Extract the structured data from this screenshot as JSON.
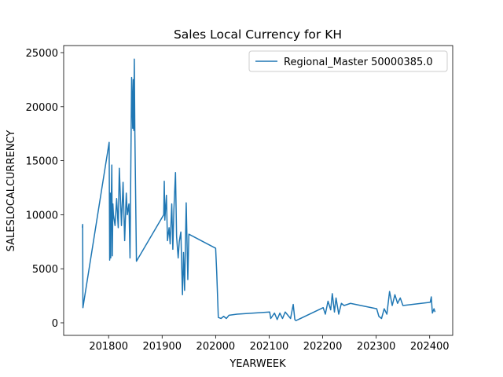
{
  "chart_data": {
    "type": "line",
    "title": "Sales Local Currency for KH",
    "xlabel": "YEARWEEK",
    "ylabel": "SALESLOCALCURRENCY",
    "x": [
      201751,
      201751.5,
      201752,
      201801,
      201802,
      201803,
      201804,
      201805,
      201806,
      201807,
      201808,
      201809,
      201812,
      201815,
      201818,
      201820,
      201824,
      201827,
      201830,
      201833,
      201835,
      201838,
      201840,
      201843,
      201845,
      201846,
      201847,
      201848,
      201849,
      201852,
      201903,
      201904,
      201905,
      201908,
      201910,
      201913,
      201915,
      201918,
      201920,
      201922,
      201925,
      201927,
      201930,
      201932,
      201935,
      201937,
      201938,
      201940,
      201942,
      201945,
      201948,
      201950,
      202000,
      202002,
      202005,
      202010,
      202015,
      202020,
      202025,
      202040,
      202101,
      202103,
      202110,
      202115,
      202120,
      202125,
      202130,
      202140,
      202145,
      202148,
      202150,
      202201,
      202205,
      202210,
      202215,
      202218,
      202222,
      202225,
      202230,
      202235,
      202240,
      202252,
      202301,
      202305,
      202310,
      202315,
      202320,
      202325,
      202330,
      202335,
      202340,
      202345,
      202350,
      202401,
      202403,
      202405,
      202408,
      202410
    ],
    "series": [
      {
        "name": "Regional_Master 50000385.0",
        "color": "#1f77b4",
        "values": [
          8800,
          9100,
          1400,
          16700,
          5800,
          12000,
          6000,
          11500,
          14600,
          6200,
          11000,
          10000,
          9000,
          11500,
          8800,
          14300,
          9000,
          13000,
          7600,
          12000,
          10000,
          11000,
          6000,
          22700,
          18000,
          22500,
          17800,
          24400,
          17800,
          5700,
          10000,
          13100,
          9500,
          11800,
          7600,
          8800,
          7300,
          11000,
          6800,
          10500,
          13900,
          8000,
          6000,
          7500,
          8400,
          4500,
          2600,
          6500,
          3000,
          11100,
          4000,
          8200,
          6900,
          4700,
          500,
          400,
          600,
          400,
          700,
          800,
          1000,
          400,
          900,
          300,
          900,
          400,
          1000,
          400,
          1700,
          300,
          200,
          1400,
          800,
          2000,
          1200,
          2700,
          1000,
          2300,
          800,
          1800,
          1600,
          1800,
          1300,
          600,
          400,
          1300,
          800,
          2900,
          1600,
          2600,
          1800,
          2300,
          1600,
          1900,
          2400,
          900,
          1300,
          1000
        ]
      }
    ],
    "xlim": [
      201716,
      202443
    ],
    "ylim": [
      -1163,
      25654
    ],
    "xticks": [
      201800,
      201900,
      202000,
      202100,
      202200,
      202300,
      202400
    ],
    "yticks": [
      0,
      5000,
      10000,
      15000,
      20000,
      25000
    ],
    "legend": "upper right"
  }
}
